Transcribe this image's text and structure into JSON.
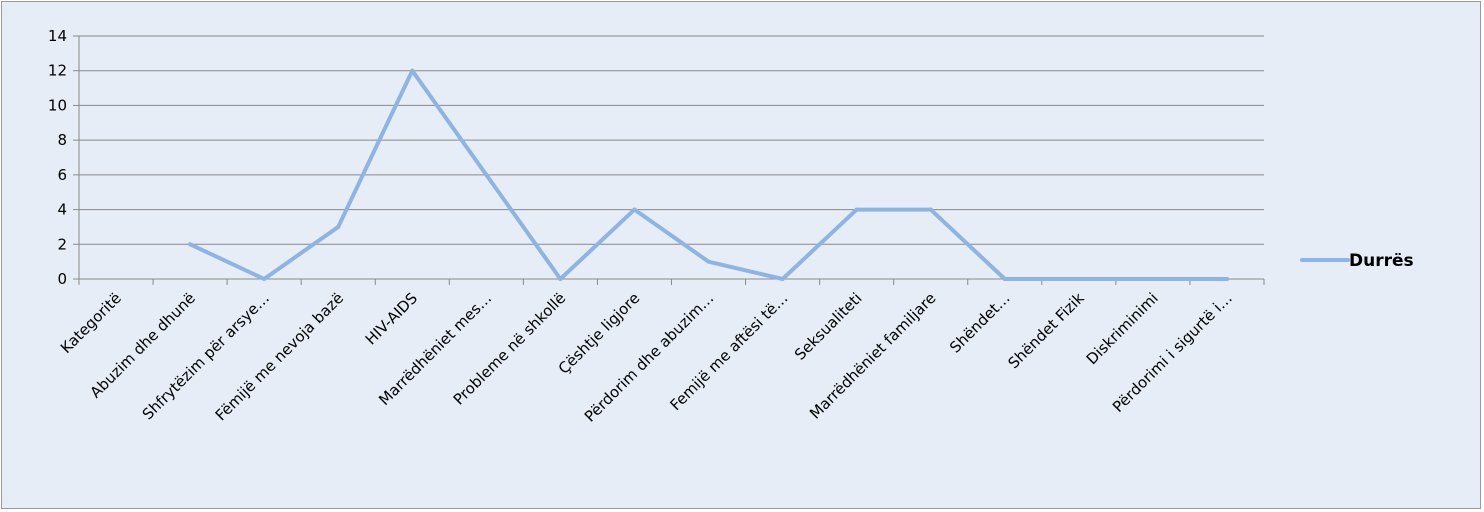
{
  "chart_data": {
    "type": "line",
    "categories": [
      "Kategoritë",
      "Abuzim dhe dhunë",
      "Shfrytëzim për arsye…",
      "Fëmijë me nevoja bazë",
      "HIV-AIDS",
      "Marrëdhëniet mes…",
      "Probleme në shkollë",
      "Çështje ligjore",
      "Përdorim dhe abuzim…",
      "Femijë me aftësi të…",
      "Seksualiteti",
      "Marrëdhëniet familjare",
      "Shëndet…",
      "Shëndet Fizik",
      "Diskriminimi",
      "Përdorimi i sigurtë i…"
    ],
    "series": [
      {
        "name": "Durrës",
        "values": [
          null,
          2,
          0,
          3,
          12,
          6,
          0,
          4,
          1,
          0,
          4,
          4,
          0,
          0,
          0,
          0
        ],
        "color": "#8eb4e3"
      }
    ],
    "ylim": [
      0,
      14
    ],
    "yticks": [
      0,
      2,
      4,
      6,
      8,
      10,
      12,
      14
    ],
    "grid": true,
    "legend": "right"
  }
}
